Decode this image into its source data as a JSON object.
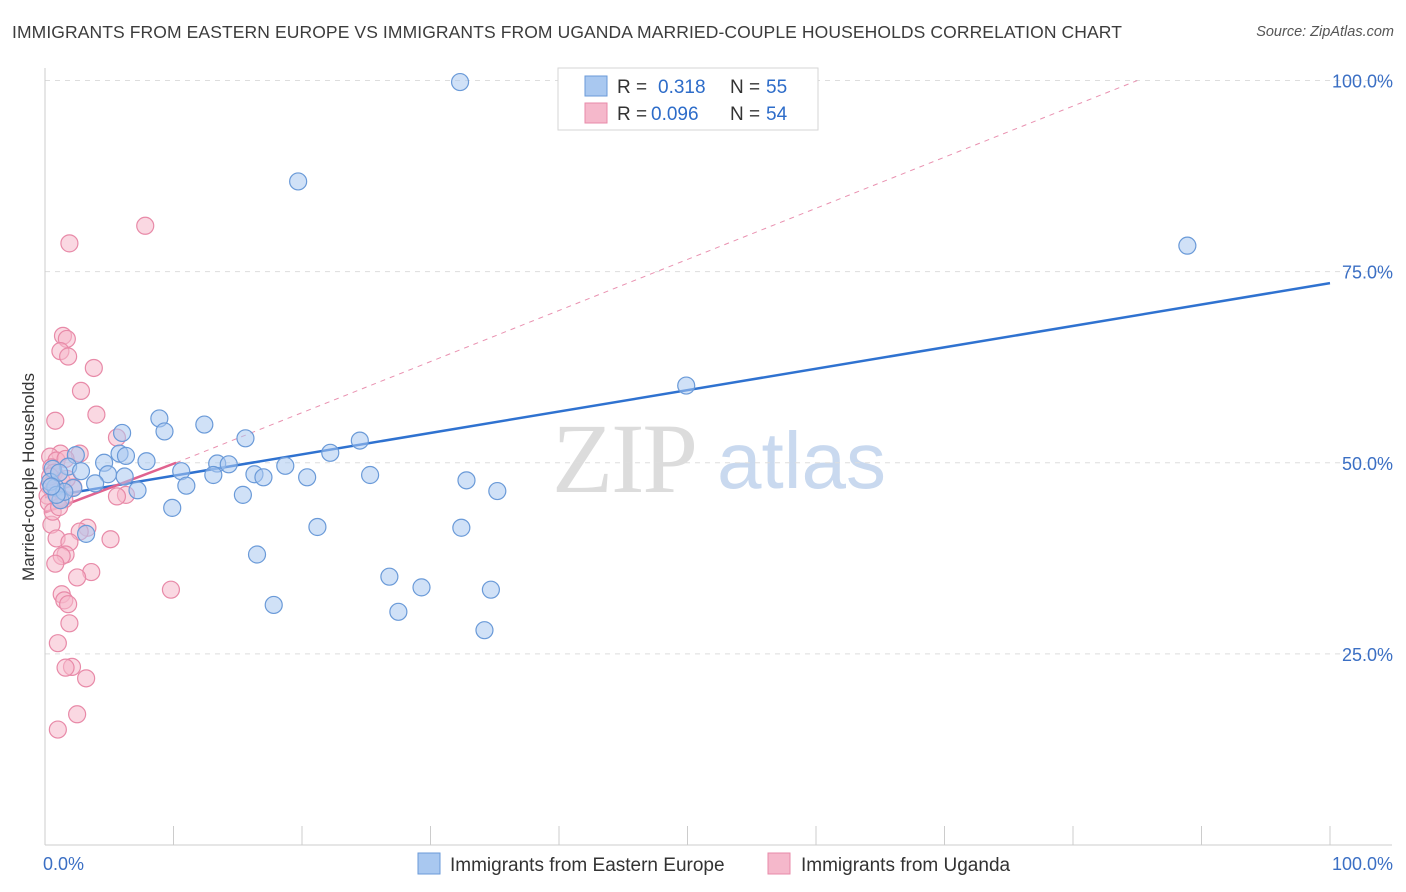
{
  "title": "IMMIGRANTS FROM EASTERN EUROPE VS IMMIGRANTS FROM UGANDA MARRIED-COUPLE HOUSEHOLDS CORRELATION CHART",
  "source": "Source: ZipAtlas.com",
  "watermark": {
    "zip": "ZIP",
    "atlas": "atlas"
  },
  "colors": {
    "blue_fill": "#a9c8f0",
    "blue_stroke": "#6a9ad8",
    "blue_line": "#2f72d0",
    "pink_fill": "#f5b8cb",
    "pink_stroke": "#e88aa8",
    "pink_line": "#e0638f",
    "grid": "#dddddd",
    "axis_text": "#3b6fc4"
  },
  "legend": {
    "r_label": "R =",
    "n_label": "N =",
    "rows": [
      {
        "r": "0.318",
        "n": "55"
      },
      {
        "r": "0.096",
        "n": "54"
      }
    ]
  },
  "chart_data": {
    "type": "scatter",
    "title": "IMMIGRANTS FROM EASTERN EUROPE VS IMMIGRANTS FROM UGANDA MARRIED-COUPLE HOUSEHOLDS CORRELATION CHART",
    "xlabel": "",
    "ylabel": "Married-couple Households",
    "xlim": [
      0,
      100
    ],
    "ylim": [
      0,
      100
    ],
    "x_tick_labels": [
      "0.0%",
      "100.0%"
    ],
    "y_ticks": [
      25,
      50,
      75,
      100
    ],
    "y_tick_labels": [
      "25.0%",
      "50.0%",
      "75.0%",
      "100.0%"
    ],
    "grid": true,
    "series": [
      {
        "name": "Immigrants from Eastern Europe",
        "color": "blue",
        "trend": {
          "x": [
            0,
            100
          ],
          "y": [
            45.5,
            73.5
          ],
          "style": "solid"
        },
        "points": [
          [
            32.3,
            99.8
          ],
          [
            19.7,
            86.8
          ],
          [
            88.9,
            78.4
          ],
          [
            49.9,
            60.1
          ],
          [
            8.9,
            55.8
          ],
          [
            12.4,
            55.0
          ],
          [
            9.3,
            54.1
          ],
          [
            6.0,
            53.9
          ],
          [
            15.6,
            53.2
          ],
          [
            24.5,
            52.9
          ],
          [
            22.2,
            51.3
          ],
          [
            5.8,
            51.2
          ],
          [
            2.4,
            51.0
          ],
          [
            6.3,
            50.9
          ],
          [
            7.9,
            50.2
          ],
          [
            4.6,
            50.0
          ],
          [
            13.4,
            49.9
          ],
          [
            14.3,
            49.8
          ],
          [
            18.7,
            49.6
          ],
          [
            1.8,
            49.5
          ],
          [
            10.6,
            48.9
          ],
          [
            16.3,
            48.5
          ],
          [
            13.1,
            48.4
          ],
          [
            25.3,
            48.4
          ],
          [
            4.9,
            48.5
          ],
          [
            6.2,
            48.2
          ],
          [
            20.4,
            48.1
          ],
          [
            17.0,
            48.1
          ],
          [
            32.8,
            47.7
          ],
          [
            11.0,
            47.0
          ],
          [
            0.8,
            46.8
          ],
          [
            2.2,
            46.7
          ],
          [
            7.2,
            46.4
          ],
          [
            35.2,
            46.3
          ],
          [
            15.4,
            45.8
          ],
          [
            1.2,
            45.1
          ],
          [
            9.9,
            44.1
          ],
          [
            21.2,
            41.6
          ],
          [
            32.4,
            41.5
          ],
          [
            3.2,
            40.7
          ],
          [
            16.5,
            38.0
          ],
          [
            26.8,
            35.1
          ],
          [
            29.3,
            33.7
          ],
          [
            34.7,
            33.4
          ],
          [
            17.8,
            31.4
          ],
          [
            27.5,
            30.5
          ],
          [
            34.2,
            28.1
          ],
          [
            0.6,
            49.2
          ],
          [
            0.4,
            47.5
          ],
          [
            1.5,
            46.2
          ],
          [
            0.9,
            45.8
          ],
          [
            2.8,
            48.9
          ],
          [
            1.1,
            48.7
          ],
          [
            0.5,
            46.9
          ],
          [
            3.9,
            47.3
          ]
        ]
      },
      {
        "name": "Immigrants from Uganda",
        "color": "pink",
        "trend": {
          "x": [
            0,
            10.2
          ],
          "y": [
            43.5,
            50.0
          ],
          "style": "solid",
          "dashed_extension": {
            "x": [
              10.2,
              85
            ],
            "y": [
              50.0,
              100
            ]
          }
        },
        "points": [
          [
            7.8,
            81.0
          ],
          [
            1.9,
            78.7
          ],
          [
            1.4,
            66.6
          ],
          [
            1.7,
            66.2
          ],
          [
            1.2,
            64.6
          ],
          [
            1.8,
            63.9
          ],
          [
            3.8,
            62.4
          ],
          [
            2.8,
            59.4
          ],
          [
            4.0,
            56.3
          ],
          [
            0.8,
            55.5
          ],
          [
            5.6,
            53.3
          ],
          [
            1.2,
            51.2
          ],
          [
            0.4,
            50.8
          ],
          [
            2.7,
            51.2
          ],
          [
            0.9,
            50.3
          ],
          [
            1.6,
            50.5
          ],
          [
            0.5,
            49.4
          ],
          [
            0.7,
            48.7
          ],
          [
            1.3,
            47.6
          ],
          [
            0.3,
            47.0
          ],
          [
            0.6,
            46.3
          ],
          [
            0.2,
            45.7
          ],
          [
            1.0,
            45.4
          ],
          [
            1.5,
            45.2
          ],
          [
            6.3,
            45.8
          ],
          [
            5.6,
            45.6
          ],
          [
            3.3,
            41.5
          ],
          [
            0.5,
            41.9
          ],
          [
            2.7,
            41.0
          ],
          [
            5.1,
            40.0
          ],
          [
            0.9,
            40.1
          ],
          [
            1.9,
            39.6
          ],
          [
            1.6,
            38.0
          ],
          [
            1.3,
            37.8
          ],
          [
            0.8,
            36.8
          ],
          [
            3.6,
            35.7
          ],
          [
            2.5,
            35.0
          ],
          [
            9.8,
            33.4
          ],
          [
            1.3,
            32.8
          ],
          [
            1.5,
            32.0
          ],
          [
            1.8,
            31.5
          ],
          [
            1.9,
            29.0
          ],
          [
            1.0,
            26.4
          ],
          [
            2.1,
            23.3
          ],
          [
            1.6,
            23.2
          ],
          [
            3.2,
            21.8
          ],
          [
            2.5,
            17.1
          ],
          [
            1.0,
            15.1
          ],
          [
            0.3,
            44.8
          ],
          [
            0.6,
            43.6
          ],
          [
            1.1,
            44.2
          ],
          [
            0.4,
            48.2
          ],
          [
            2.2,
            46.8
          ],
          [
            1.7,
            47.9
          ]
        ]
      }
    ]
  },
  "bottom_legend": {
    "items": [
      "Immigrants from Eastern Europe",
      "Immigrants from Uganda"
    ]
  }
}
